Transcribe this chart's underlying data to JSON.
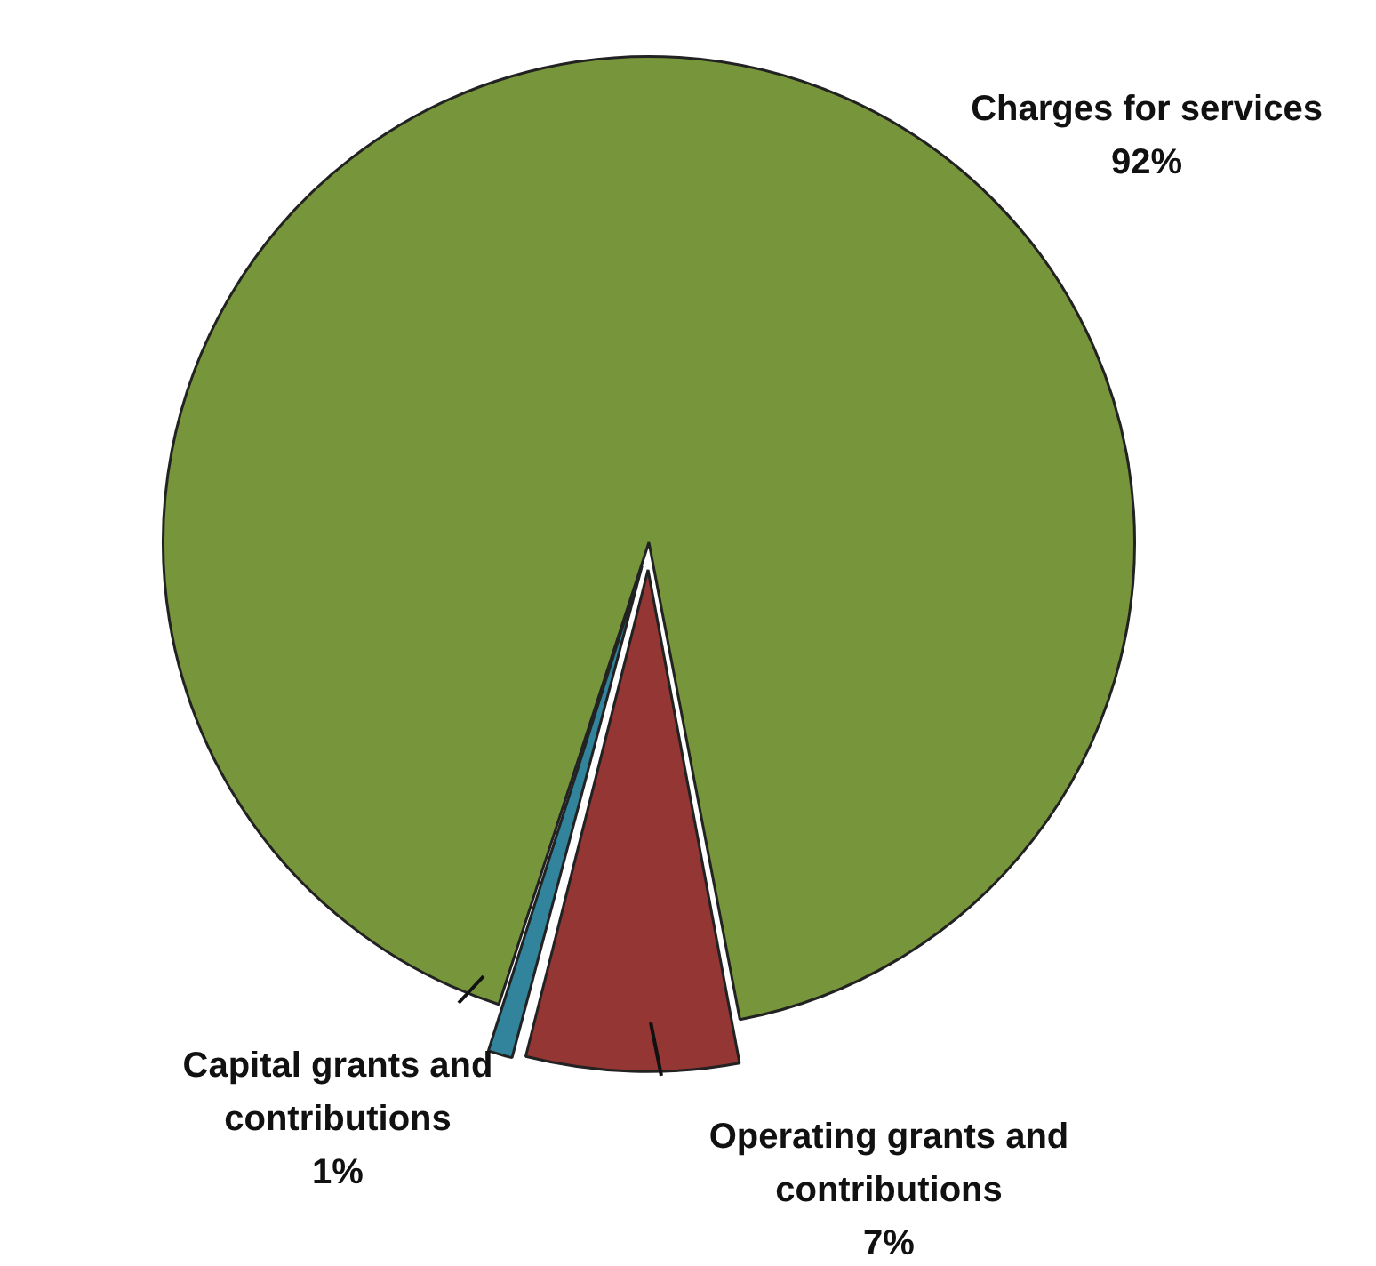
{
  "chart_data": {
    "type": "pie",
    "categories": [
      "Charges for services",
      "Operating grants and contributions",
      "Capital grants and contributions"
    ],
    "values": [
      92,
      7,
      1
    ],
    "value_labels": [
      "92%",
      "7%",
      "1%"
    ],
    "colors": [
      "#77963b",
      "#943634",
      "#31849b"
    ],
    "legend": false
  }
}
